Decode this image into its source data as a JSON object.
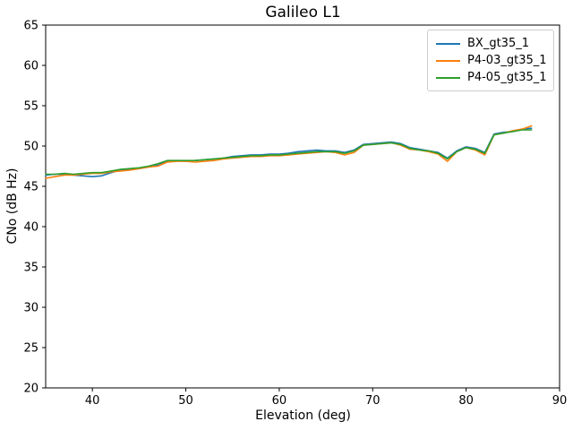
{
  "chart_data": {
    "type": "line",
    "title": "Galileo L1",
    "xlabel": "Elevation (deg)",
    "ylabel": "CNo (dB Hz)",
    "xlim": [
      35,
      90
    ],
    "ylim": [
      20,
      65
    ],
    "x_ticks": [
      40,
      50,
      60,
      70,
      80,
      90
    ],
    "y_ticks": [
      20,
      25,
      30,
      35,
      40,
      45,
      50,
      55,
      60,
      65
    ],
    "grid": false,
    "legend_position": "upper right",
    "x": [
      35,
      36,
      37,
      38,
      39,
      40,
      41,
      42,
      43,
      44,
      45,
      46,
      47,
      48,
      49,
      50,
      51,
      52,
      53,
      54,
      55,
      56,
      57,
      58,
      59,
      60,
      61,
      62,
      63,
      64,
      65,
      66,
      67,
      68,
      69,
      70,
      71,
      72,
      73,
      74,
      75,
      76,
      77,
      78,
      79,
      80,
      81,
      82,
      83,
      84,
      85,
      86,
      87
    ],
    "series": [
      {
        "name": "BX_gt35_1",
        "color": "#1f77b4",
        "values": [
          46.4,
          46.5,
          46.5,
          46.4,
          46.3,
          46.2,
          46.3,
          46.7,
          47.0,
          47.1,
          47.2,
          47.4,
          47.6,
          48.1,
          48.2,
          48.1,
          48.2,
          48.3,
          48.4,
          48.5,
          48.7,
          48.8,
          48.9,
          48.9,
          49.0,
          49.0,
          49.1,
          49.3,
          49.4,
          49.5,
          49.4,
          49.4,
          49.2,
          49.5,
          50.2,
          50.3,
          50.4,
          50.5,
          50.3,
          49.8,
          49.6,
          49.4,
          49.2,
          48.5,
          49.4,
          49.9,
          49.7,
          49.2,
          51.5,
          51.7,
          51.8,
          52.1,
          52.2
        ]
      },
      {
        "name": "P4-03_gt35_1",
        "color": "#ff7f0e",
        "values": [
          46.0,
          46.2,
          46.4,
          46.4,
          46.5,
          46.6,
          46.6,
          46.8,
          46.9,
          47.0,
          47.2,
          47.4,
          47.5,
          48.0,
          48.1,
          48.1,
          48.0,
          48.1,
          48.2,
          48.4,
          48.5,
          48.6,
          48.7,
          48.7,
          48.8,
          48.8,
          48.9,
          49.0,
          49.1,
          49.2,
          49.3,
          49.2,
          48.9,
          49.2,
          50.1,
          50.2,
          50.3,
          50.4,
          50.1,
          49.6,
          49.5,
          49.3,
          49.0,
          48.1,
          49.3,
          49.8,
          49.5,
          48.9,
          51.4,
          51.6,
          51.9,
          52.1,
          52.5
        ]
      },
      {
        "name": "P4-05_gt35_1",
        "color": "#2ca02c",
        "values": [
          46.5,
          46.5,
          46.6,
          46.5,
          46.6,
          46.7,
          46.7,
          46.9,
          47.1,
          47.2,
          47.3,
          47.5,
          47.8,
          48.2,
          48.2,
          48.2,
          48.2,
          48.3,
          48.4,
          48.5,
          48.6,
          48.7,
          48.8,
          48.8,
          48.9,
          48.9,
          49.0,
          49.1,
          49.2,
          49.3,
          49.3,
          49.3,
          49.1,
          49.4,
          50.1,
          50.2,
          50.3,
          50.4,
          50.2,
          49.7,
          49.5,
          49.4,
          49.1,
          48.4,
          49.3,
          49.8,
          49.6,
          49.1,
          51.4,
          51.6,
          51.8,
          52.0,
          52.0
        ]
      }
    ]
  }
}
